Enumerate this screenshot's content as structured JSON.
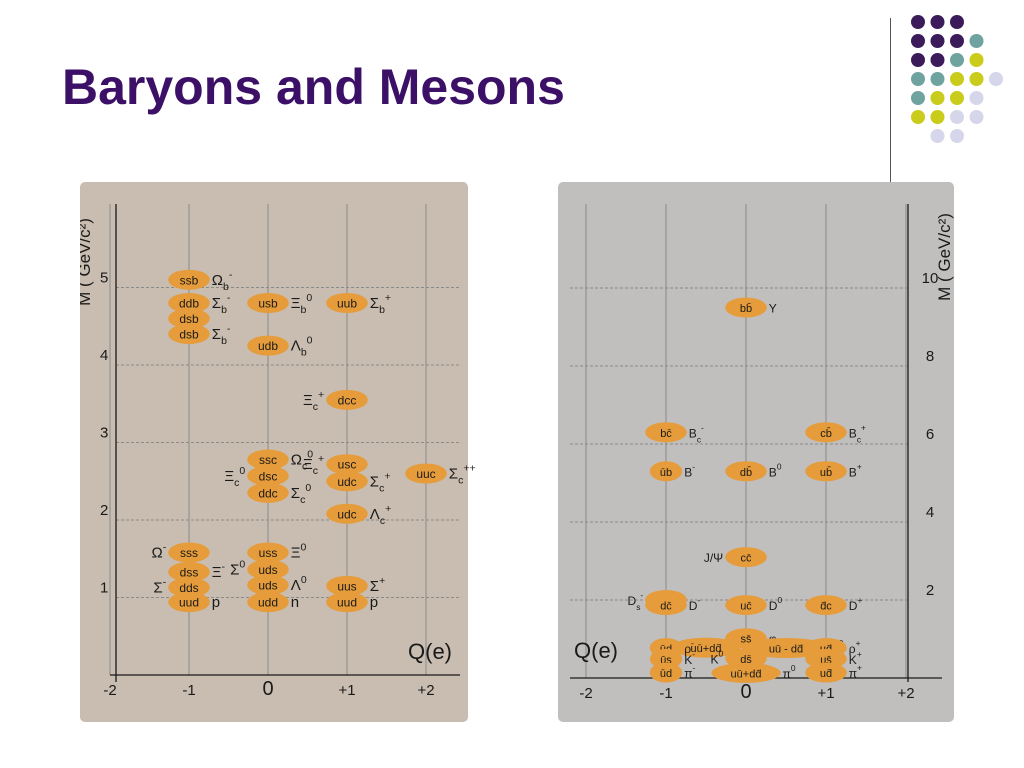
{
  "slide": {
    "title": "Baryons and Mesons",
    "decor": {
      "colors": {
        "purple": "#3c1b5b",
        "teal": "#6fa3a0",
        "yellow": "#c9cc1a",
        "lavender": "#d6d6ea"
      },
      "pattern": [
        [
          "purple",
          "purple",
          "purple"
        ],
        [
          "purple",
          "purple",
          "purple",
          "teal"
        ],
        [
          "purple",
          "purple",
          "teal",
          "yellow"
        ],
        [
          "teal",
          "teal",
          "yellow",
          "yellow",
          "lavender"
        ],
        [
          "teal",
          "yellow",
          "yellow",
          "lavender"
        ],
        [
          "yellow",
          "yellow",
          "lavender",
          "lavender"
        ],
        [
          "lavender",
          "lavender"
        ]
      ]
    }
  },
  "colors": {
    "left_panel": "#c8bdb0",
    "right_panel": "#c0bfbe",
    "blob": "#e69c3a",
    "grid": "#8a8a8a",
    "ink": "#1a1a1a"
  },
  "chart_data": [
    {
      "type": "scatter",
      "name": "baryons",
      "xlabel": "Q(e)",
      "ylabel": "M ( GeV/c²)",
      "xlim": [
        -2,
        2
      ],
      "ylim": [
        0,
        6
      ],
      "xticks": [
        "-2",
        "-1",
        "0",
        "+1",
        "+2"
      ],
      "yticks": [
        "1",
        "2",
        "3",
        "4",
        "5"
      ],
      "ytick_values": [
        1,
        2,
        3,
        4,
        5
      ],
      "grid": true,
      "points": [
        {
          "x": -1,
          "y": 5.1,
          "q": "ssb",
          "sym": "Ω",
          "sup": "-",
          "sub": "b",
          "side": "right"
        },
        {
          "x": -1,
          "y": 4.8,
          "q": "ddb",
          "sym": "Σ",
          "sup": "-",
          "sub": "b",
          "side": "right"
        },
        {
          "x": -1,
          "y": 4.6,
          "q": "dsb",
          "sym": "",
          "sup": "",
          "sub": "",
          "side": "right"
        },
        {
          "x": -1,
          "y": 4.4,
          "q": "dsb",
          "sym": "Σ",
          "sup": "-",
          "sub": "b",
          "side": "right"
        },
        {
          "x": 0,
          "y": 4.8,
          "q": "usb",
          "sym": "Ξ",
          "sup": "0",
          "sub": "b",
          "side": "right"
        },
        {
          "x": 0,
          "y": 4.25,
          "q": "udb",
          "sym": "Λ",
          "sup": "0",
          "sub": "b",
          "side": "right"
        },
        {
          "x": 1,
          "y": 4.8,
          "q": "uub",
          "sym": "Σ",
          "sup": "+",
          "sub": "b",
          "side": "right"
        },
        {
          "x": 1,
          "y": 3.55,
          "q": "dcc",
          "sym": "Ξ",
          "sup": "+",
          "sub": "c",
          "side": "left"
        },
        {
          "x": 0,
          "y": 2.78,
          "q": "ssc",
          "sym": "Ω",
          "sup": "0",
          "sub": "c",
          "side": "right"
        },
        {
          "x": 0,
          "y": 2.57,
          "q": "dsc",
          "sym": "Ξ",
          "sup": "0",
          "sub": "c",
          "side": "left"
        },
        {
          "x": 0,
          "y": 2.35,
          "q": "ddc",
          "sym": "Σ",
          "sup": "0",
          "sub": "c",
          "side": "right"
        },
        {
          "x": 1,
          "y": 2.72,
          "q": "usc",
          "sym": "Ξ",
          "sup": "+",
          "sub": "c",
          "side": "left"
        },
        {
          "x": 1,
          "y": 2.5,
          "q": "udc",
          "sym": "Σ",
          "sup": "+",
          "sub": "c",
          "side": "right"
        },
        {
          "x": 1,
          "y": 2.08,
          "q": "udc",
          "sym": "Λ",
          "sup": "+",
          "sub": "c",
          "side": "right"
        },
        {
          "x": 2,
          "y": 2.6,
          "q": "uuc",
          "sym": "Σ",
          "sup": "++",
          "sub": "c",
          "side": "right"
        },
        {
          "x": -1,
          "y": 1.58,
          "q": "sss",
          "sym": "Ω",
          "sup": "-",
          "sub": "",
          "side": "left"
        },
        {
          "x": -1,
          "y": 1.33,
          "q": "dss",
          "sym": "Ξ",
          "sup": "-",
          "sub": "",
          "side": "right"
        },
        {
          "x": -1,
          "y": 1.13,
          "q": "dds",
          "sym": "Σ",
          "sup": "-",
          "sub": "",
          "side": "left"
        },
        {
          "x": -1,
          "y": 0.94,
          "q": "uud",
          "sym": "p",
          "sup": "",
          "sub": "",
          "side": "right",
          "bar": true
        },
        {
          "x": 0,
          "y": 1.58,
          "q": "uss",
          "sym": "Ξ",
          "sup": "0",
          "sub": "",
          "side": "right"
        },
        {
          "x": 0,
          "y": 1.36,
          "q": "uds",
          "sym": "Σ",
          "sup": "0",
          "sub": "",
          "side": "left"
        },
        {
          "x": 0,
          "y": 1.16,
          "q": "uds",
          "sym": "Λ",
          "sup": "0",
          "sub": "",
          "side": "right"
        },
        {
          "x": 0,
          "y": 0.94,
          "q": "udd",
          "sym": "n",
          "sup": "",
          "sub": "",
          "side": "right"
        },
        {
          "x": 1,
          "y": 1.15,
          "q": "uus",
          "sym": "Σ",
          "sup": "+",
          "sub": "",
          "side": "right"
        },
        {
          "x": 1,
          "y": 0.94,
          "q": "uud",
          "sym": "p",
          "sup": "",
          "sub": "",
          "side": "right"
        }
      ]
    },
    {
      "type": "scatter",
      "name": "mesons",
      "xlabel": "Q(e)",
      "ylabel": "M ( GeV/c²)",
      "xlim": [
        -2,
        2
      ],
      "ylim": [
        0,
        12
      ],
      "xticks": [
        "-2",
        "-1",
        "0",
        "+1",
        "+2"
      ],
      "yticks": [
        "2",
        "4",
        "6",
        "8",
        "10"
      ],
      "ytick_values": [
        2,
        4,
        6,
        8,
        10
      ],
      "grid": true,
      "points": [
        {
          "x": 0,
          "y": 9.5,
          "q": "bb̄",
          "sym": "Υ",
          "sup": "",
          "sub": "",
          "side": "right"
        },
        {
          "x": -1,
          "y": 6.3,
          "q": "bc̄",
          "sym": "B",
          "sup": "-",
          "sub": "c",
          "side": "right"
        },
        {
          "x": 1,
          "y": 6.3,
          "q": "cb̄",
          "sym": "B",
          "sup": "+",
          "sub": "c",
          "side": "right"
        },
        {
          "x": -1,
          "y": 5.3,
          "q": "ūb",
          "sym": "B",
          "sup": "-",
          "sub": "",
          "side": "right"
        },
        {
          "x": 0,
          "y": 5.3,
          "q": "db̄",
          "sym": "B",
          "sup": "0",
          "sub": "",
          "side": "right"
        },
        {
          "x": 1,
          "y": 5.3,
          "q": "ub̄",
          "sym": "B",
          "sup": "+",
          "sub": "",
          "side": "right"
        },
        {
          "x": 0,
          "y": 3.1,
          "q": "cc̄",
          "sym": "J/Ψ",
          "sup": "",
          "sub": "",
          "side": "left"
        },
        {
          "x": -1,
          "y": 2.0,
          "q": "sc̄",
          "sym": "D",
          "sup": "-",
          "sub": "s",
          "side": "left"
        },
        {
          "x": -1,
          "y": 1.87,
          "q": "dc̄",
          "sym": "D",
          "sup": "-",
          "sub": "",
          "side": "right"
        },
        {
          "x": 0,
          "y": 1.87,
          "q": "uc̄",
          "sym": "D",
          "sup": "0",
          "sub": "",
          "side": "right"
        },
        {
          "x": 1,
          "y": 1.87,
          "q": "d̄c",
          "sym": "D",
          "sup": "+",
          "sub": "",
          "side": "right"
        },
        {
          "x": -0.5,
          "y": 0.78,
          "q": "uū+dd̄",
          "sym": "ω",
          "sup": "",
          "sub": "",
          "side": "left"
        },
        {
          "x": 0,
          "y": 1.02,
          "q": "ss̄",
          "sym": "φ",
          "sup": "",
          "sub": "",
          "side": "right"
        },
        {
          "x": 0.5,
          "y": 0.77,
          "q": "uū - dd̄",
          "sym": "ρ",
          "sup": "0",
          "sub": "",
          "side": "right"
        },
        {
          "x": -1,
          "y": 0.77,
          "q": "ūd",
          "sym": "ρ",
          "sup": "-",
          "sub": "",
          "side": "right"
        },
        {
          "x": 1,
          "y": 0.77,
          "q": "ud̄",
          "sym": "ρ",
          "sup": "+",
          "sub": "",
          "side": "right"
        },
        {
          "x": -1,
          "y": 0.49,
          "q": "ūs",
          "sym": "K",
          "sup": "-",
          "sub": "",
          "side": "right"
        },
        {
          "x": 0,
          "y": 0.5,
          "q": "ds̄",
          "sym": "K",
          "sup": "0",
          "sub": "",
          "side": "left"
        },
        {
          "x": 1,
          "y": 0.49,
          "q": "us̄",
          "sym": "K",
          "sup": "+",
          "sub": "",
          "side": "right"
        },
        {
          "x": -1,
          "y": 0.14,
          "q": "ūd",
          "sym": "π",
          "sup": "-",
          "sub": "",
          "side": "right"
        },
        {
          "x": 0,
          "y": 0.13,
          "q": "uū+dd̄",
          "sym": "π",
          "sup": "0",
          "sub": "",
          "side": "right"
        },
        {
          "x": 1,
          "y": 0.14,
          "q": "ud̄",
          "sym": "π",
          "sup": "+",
          "sub": "",
          "side": "right"
        }
      ]
    }
  ]
}
